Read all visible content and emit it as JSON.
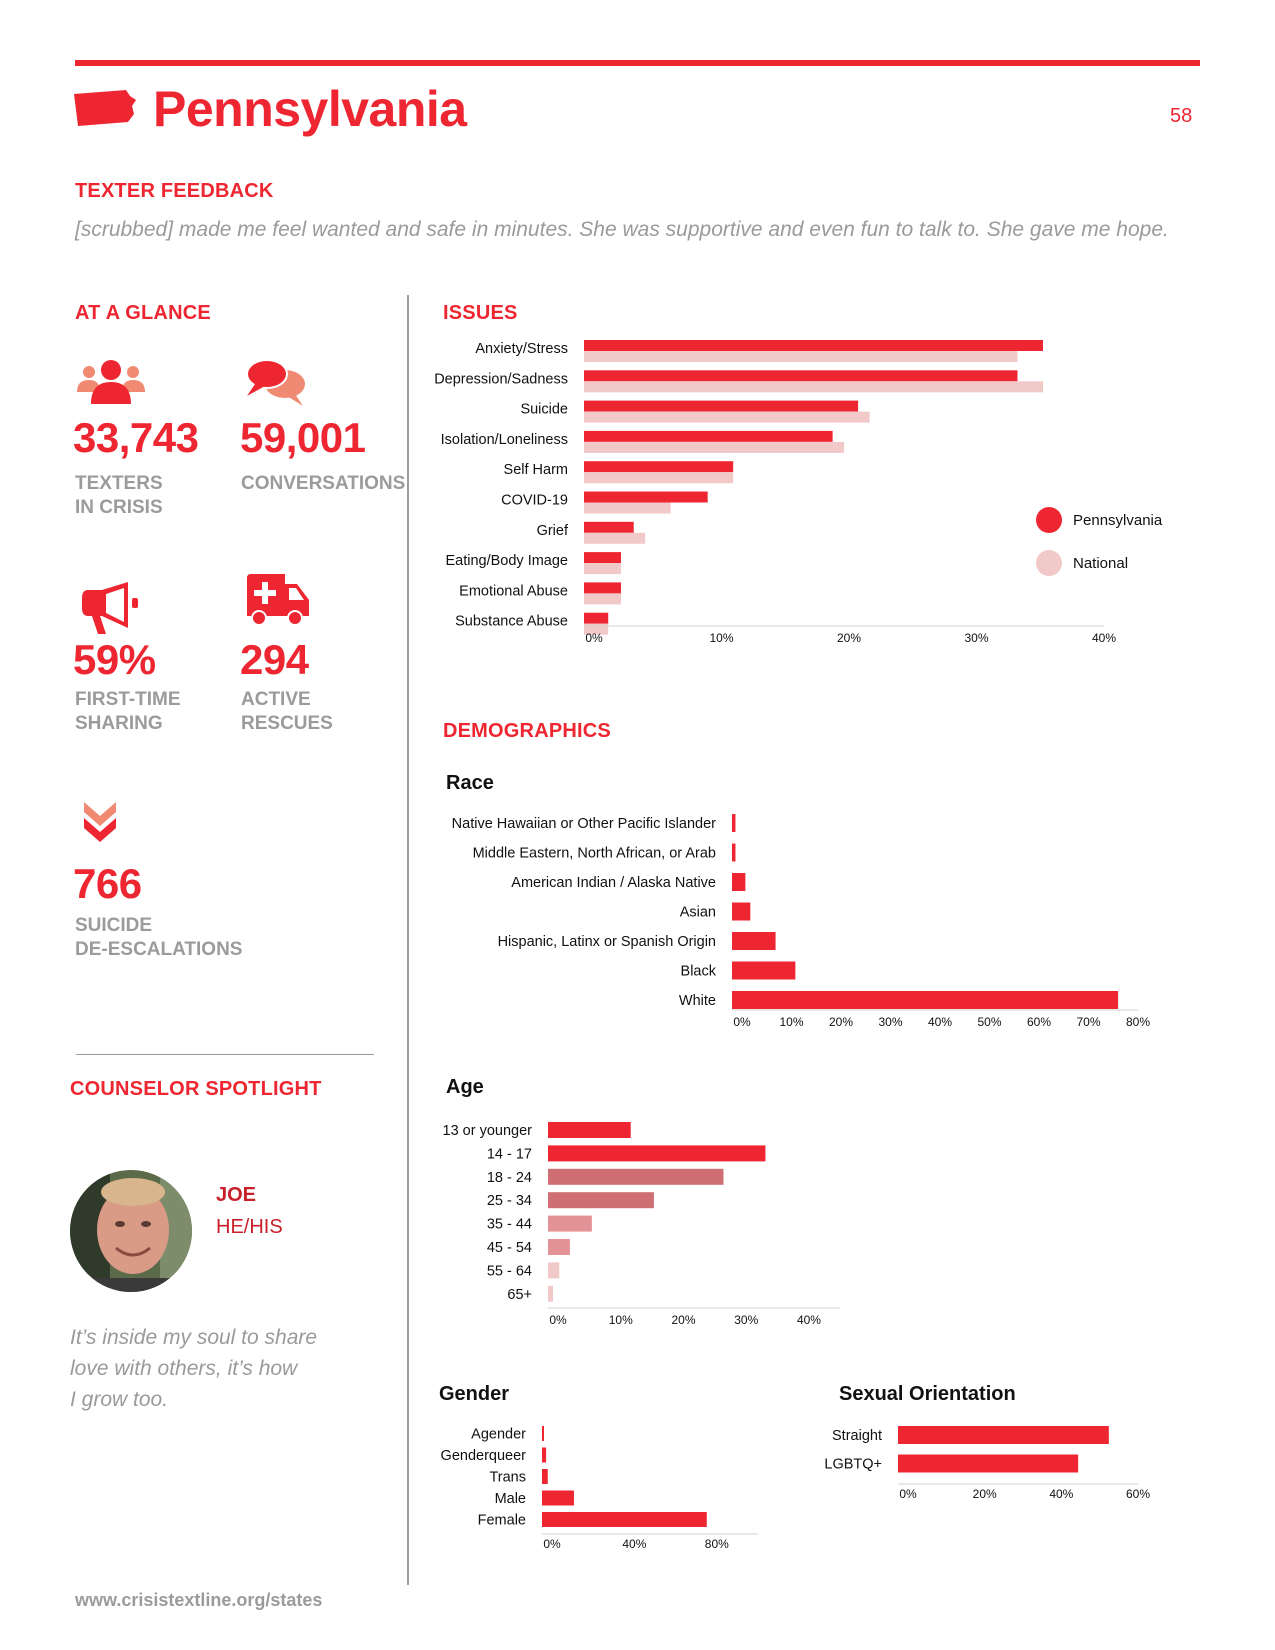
{
  "header": {
    "state": "Pennsylvania",
    "page_number": "58"
  },
  "feedback": {
    "title": "TEXTER FEEDBACK",
    "quote": "[scrubbed] made me feel wanted and safe in minutes. She was supportive and even fun to talk to. She gave me hope."
  },
  "glance": {
    "title": "AT A GLANCE",
    "stats": [
      {
        "value": "33,743",
        "label_1": "TEXTERS",
        "label_2": "IN CRISIS",
        "icon": "people-icon"
      },
      {
        "value": "59,001",
        "label_1": "CONVERSATIONS",
        "label_2": "",
        "icon": "chat-bubbles-icon"
      },
      {
        "value": "59%",
        "label_1": "FIRST-TIME",
        "label_2": "SHARING",
        "icon": "megaphone-icon"
      },
      {
        "value": "294",
        "label_1": "ACTIVE",
        "label_2": "RESCUES",
        "icon": "ambulance-icon"
      },
      {
        "value": "766",
        "label_1": "SUICIDE",
        "label_2": "DE-ESCALATIONS",
        "icon": "double-chevron-down-icon"
      }
    ]
  },
  "spotlight": {
    "title": "COUNSELOR SPOTLIGHT",
    "name": "JOE",
    "pronouns": "HE/HIS",
    "quote_1": "It’s inside my soul to share",
    "quote_2": "love with others, it’s how",
    "quote_3": "I grow too."
  },
  "footer": {
    "url": "www.crisistextline.org/states"
  },
  "issues_title": "ISSUES",
  "demographics_title": "DEMOGRAPHICS",
  "legend": {
    "pa": "Pennsylvania",
    "national": "National"
  },
  "colors": {
    "accent": "#ee2631",
    "national": "#f2c9c9",
    "grey": "#9b9b9b"
  },
  "chart_data": [
    {
      "id": "issues",
      "type": "bar",
      "orientation": "horizontal",
      "categories": [
        "Anxiety/Stress",
        "Depression/Sadness",
        "Suicide",
        "Isolation/Loneliness",
        "Self Harm",
        "COVID-19",
        "Grief",
        "Eating/Body Image",
        "Emotional Abuse",
        "Substance Abuse"
      ],
      "series": [
        {
          "name": "Pennsylvania",
          "values": [
            36,
            34,
            21.5,
            19.5,
            11.7,
            9.7,
            3.9,
            2.9,
            2.9,
            1.9
          ]
        },
        {
          "name": "National",
          "values": [
            34,
            36,
            22.4,
            20.4,
            11.7,
            6.8,
            4.8,
            2.9,
            2.9,
            1.9
          ]
        }
      ],
      "ticks": [
        "0%",
        "10%",
        "20%",
        "30%",
        "40%"
      ],
      "xlim": [
        0,
        40
      ]
    },
    {
      "id": "race",
      "type": "bar",
      "orientation": "horizontal",
      "title": "Race",
      "categories": [
        "Native Hawaiian or Other Pacific Islander",
        "Middle Eastern, North African, or Arab",
        "American Indian / Alaska Native",
        "Asian",
        "Hispanic, Latinx or Spanish Origin",
        "Black",
        "White"
      ],
      "values": [
        0.7,
        0.7,
        2.7,
        3.7,
        8.8,
        12.8,
        78
      ],
      "ticks": [
        "0%",
        "10%",
        "20%",
        "30%",
        "40%",
        "50%",
        "60%",
        "70%",
        "80%"
      ],
      "xlim": [
        0,
        80
      ]
    },
    {
      "id": "age",
      "type": "bar",
      "orientation": "horizontal",
      "title": "Age",
      "categories": [
        "13 or younger",
        "14 - 17",
        "18 - 24",
        "25 - 34",
        "35 - 44",
        "45 - 54",
        "55 - 64",
        "65+"
      ],
      "values": [
        13.2,
        34.7,
        28,
        16.9,
        7,
        3.5,
        1.8,
        0.8
      ],
      "bar_colors": [
        "#ee2631",
        "#ee2631",
        "#cf6e73",
        "#cf6e73",
        "#e39296",
        "#e39296",
        "#f2c9c9",
        "#f2c9c9"
      ],
      "ticks": [
        "0%",
        "10%",
        "20%",
        "30%",
        "40%"
      ],
      "xlim": [
        0,
        45
      ]
    },
    {
      "id": "gender",
      "type": "bar",
      "orientation": "horizontal",
      "title": "Gender",
      "categories": [
        "Agender",
        "Genderqueer",
        "Trans",
        "Male",
        "Female"
      ],
      "values": [
        0.8,
        2,
        2.8,
        15.5,
        80
      ],
      "ticks": [
        "0%",
        "40%",
        "80%"
      ],
      "xlim": [
        0,
        100
      ]
    },
    {
      "id": "orientation",
      "type": "bar",
      "orientation": "horizontal",
      "title": "Sexual Orientation",
      "categories": [
        "Straight",
        "LGBTQ+"
      ],
      "values": [
        55,
        47
      ],
      "ticks": [
        "0%",
        "20%",
        "40%",
        "60%"
      ],
      "xlim": [
        0,
        60
      ]
    }
  ]
}
